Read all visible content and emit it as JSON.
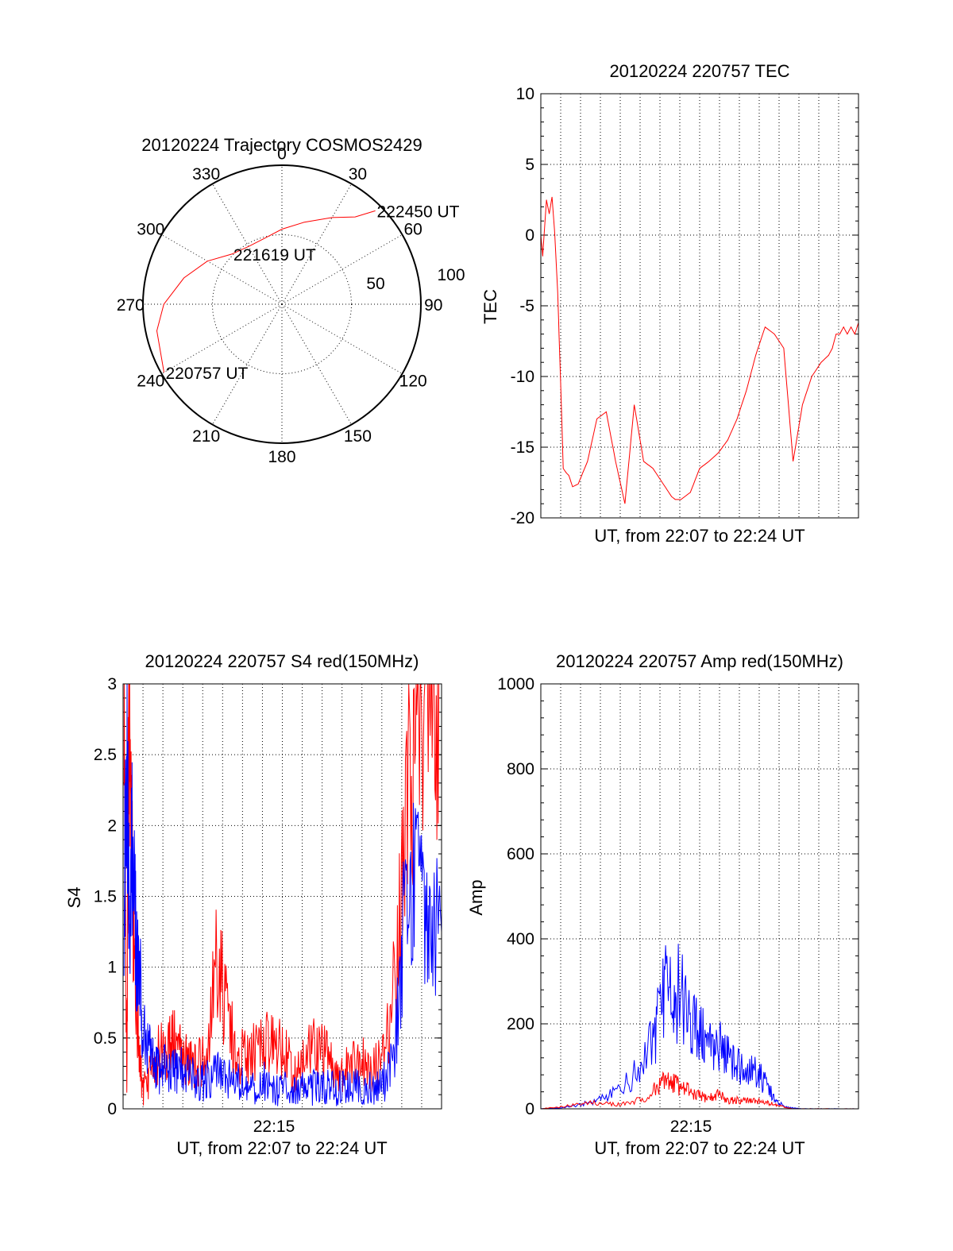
{
  "chart_data": [
    {
      "type": "polar",
      "title": "20120224 Trajectory COSMOS2429",
      "angle_labels": [
        "0",
        "30",
        "60",
        "90",
        "120",
        "150",
        "180",
        "210",
        "240",
        "270",
        "300",
        "330"
      ],
      "radial_labels": [
        "50",
        "100"
      ],
      "series": [
        {
          "color": "#ff0000",
          "points": [
            [
              240,
              98
            ],
            [
              258,
              92
            ],
            [
              270,
              85
            ],
            [
              285,
              73
            ],
            [
              300,
              62
            ],
            [
              315,
              51
            ],
            [
              330,
              48
            ],
            [
              345,
              49
            ],
            [
              0,
              54
            ],
            [
              15,
              61
            ],
            [
              30,
              72
            ],
            [
              40,
              82
            ],
            [
              45,
              95
            ]
          ]
        }
      ],
      "annotations": [
        {
          "text": "222450 UT",
          "az": 45,
          "r": 95
        },
        {
          "text": "221619 UT",
          "az": 315,
          "r": 51
        },
        {
          "text": "220757 UT",
          "az": 240,
          "r": 98
        }
      ]
    },
    {
      "type": "line",
      "title": "20120224 220757 TEC",
      "xlabel": "UT, from 22:07 to 22:24 UT",
      "ylabel": "TEC",
      "xlim": [
        0,
        17
      ],
      "ylim": [
        -20,
        10
      ],
      "yticks": [
        "10",
        "5",
        "0",
        "-5",
        "-10",
        "-15",
        "-20"
      ],
      "series": [
        {
          "color": "#ff0000",
          "x": [
            0.0,
            0.1,
            0.2,
            0.3,
            0.45,
            0.6,
            0.75,
            0.9,
            1.05,
            1.2,
            1.35,
            1.5,
            1.7,
            2.0,
            2.5,
            3.0,
            3.5,
            4.0,
            4.5,
            5.0,
            5.5,
            6.0,
            6.5,
            7.0,
            7.2,
            7.5,
            8.0,
            8.5,
            9.0,
            9.5,
            10.0,
            10.5,
            11.0,
            11.5,
            12.0,
            12.5,
            13.0,
            13.5,
            14.0,
            14.5,
            15.0,
            15.4,
            15.6,
            15.8,
            16.0,
            16.2,
            16.4,
            16.6,
            16.8,
            17.0
          ],
          "y": [
            0,
            -1.5,
            0.5,
            2.5,
            1.5,
            2.7,
            0,
            -4,
            -10,
            -16.5,
            -16.8,
            -17,
            -17.8,
            -17.6,
            -16,
            -13,
            -12.5,
            -16,
            -19,
            -12,
            -16,
            -16.5,
            -17.5,
            -18.5,
            -18.7,
            -18.7,
            -18.2,
            -16.5,
            -16,
            -15.4,
            -14.5,
            -13,
            -11,
            -8.5,
            -6.5,
            -7,
            -8,
            -16,
            -12,
            -10,
            -9,
            -8.5,
            -8,
            -7,
            -7,
            -6.5,
            -7,
            -6.5,
            -7,
            -6.2
          ]
        }
      ]
    },
    {
      "type": "line",
      "title": "20120224 220757 S4 red(150MHz)",
      "xlabel": "UT, from 22:07 to 22:24 UT",
      "ylabel": "S4",
      "xtick_label": "22:15",
      "xlim": [
        0,
        17
      ],
      "ylim": [
        0,
        3
      ],
      "yticks": [
        "3",
        "2.5",
        "2",
        "1.5",
        "1",
        "0.5",
        "0"
      ],
      "series": [
        {
          "color": "#ff0000",
          "x": [
            0.05,
            0.2,
            0.3,
            0.45,
            0.6,
            0.8,
            1.0,
            1.3,
            1.6,
            2.0,
            2.3,
            2.6,
            3.0,
            3.3,
            3.6,
            4.0,
            4.5,
            5.0,
            5.5,
            6.0,
            6.5,
            7.0,
            7.5,
            8.0,
            8.5,
            9.0,
            9.5,
            10.0,
            10.5,
            11.0,
            11.5,
            12.0,
            12.5,
            13.0,
            13.5,
            14.0,
            14.5,
            15.0,
            15.5,
            16.0,
            16.5,
            17.0
          ],
          "y": [
            3.0,
            0.1,
            3.0,
            2.0,
            1.0,
            0.6,
            0.15,
            0.15,
            0.35,
            0.4,
            0.35,
            0.5,
            0.4,
            0.35,
            0.3,
            0.3,
            0.4,
            1.1,
            0.7,
            0.4,
            0.35,
            0.4,
            0.5,
            0.45,
            0.4,
            0.3,
            0.3,
            0.4,
            0.45,
            0.35,
            0.3,
            0.3,
            0.35,
            0.3,
            0.3,
            0.4,
            1.0,
            1.8,
            2.6,
            3.0,
            3.0,
            3.0
          ]
        },
        {
          "color": "#0000ff",
          "x": [
            0.05,
            0.2,
            0.35,
            0.5,
            0.7,
            0.9,
            1.1,
            1.4,
            1.7,
            2.0,
            2.3,
            2.7,
            3.0,
            3.5,
            4.0,
            4.5,
            5.0,
            5.5,
            6.0,
            6.5,
            7.0,
            7.5,
            8.0,
            8.5,
            9.0,
            9.5,
            10.0,
            10.5,
            11.0,
            11.5,
            12.0,
            12.5,
            13.0,
            13.5,
            14.0,
            14.5,
            15.0,
            15.5,
            16.0,
            16.5,
            17.0
          ],
          "y": [
            1.2,
            2.8,
            1.0,
            2.0,
            1.1,
            0.9,
            0.5,
            0.4,
            0.35,
            0.25,
            0.3,
            0.25,
            0.3,
            0.25,
            0.2,
            0.2,
            0.25,
            0.2,
            0.2,
            0.15,
            0.15,
            0.2,
            0.15,
            0.15,
            0.15,
            0.15,
            0.15,
            0.15,
            0.15,
            0.15,
            0.15,
            0.15,
            0.15,
            0.15,
            0.2,
            0.4,
            1.3,
            1.6,
            1.4,
            1.3,
            1.25
          ]
        }
      ]
    },
    {
      "type": "line",
      "title": "20120224 220757 Amp red(150MHz)",
      "xlabel": "UT, from 22:07 to 22:24 UT",
      "ylabel": "Amp",
      "xtick_label": "22:15",
      "xlim": [
        0,
        17
      ],
      "ylim": [
        0,
        1000
      ],
      "yticks": [
        "1000",
        "800",
        "600",
        "400",
        "200",
        "0"
      ],
      "series": [
        {
          "color": "#0000ff",
          "x": [
            0,
            1.0,
            2.0,
            3.0,
            4.0,
            5.0,
            6.0,
            6.5,
            7.0,
            7.5,
            8.0,
            8.5,
            9.0,
            9.5,
            10.0,
            10.5,
            11.0,
            11.5,
            12.0,
            12.5,
            13.0,
            13.5,
            14.0,
            14.5,
            15.0,
            16.0,
            17.0
          ],
          "y": [
            0,
            2,
            8,
            20,
            40,
            80,
            160,
            250,
            300,
            260,
            200,
            180,
            140,
            150,
            120,
            100,
            90,
            90,
            60,
            25,
            5,
            2,
            0,
            0,
            0,
            0,
            0
          ]
        },
        {
          "color": "#ff0000",
          "x": [
            0,
            1.0,
            2.0,
            3.0,
            4.0,
            5.0,
            6.0,
            6.5,
            7.0,
            7.5,
            8.0,
            8.5,
            9.0,
            9.5,
            10.0,
            10.5,
            11.0,
            11.5,
            12.0,
            12.5,
            13.0,
            13.5,
            14.0,
            15.0,
            16.0,
            17.0
          ],
          "y": [
            0,
            5,
            10,
            15,
            10,
            15,
            40,
            60,
            70,
            50,
            40,
            30,
            25,
            35,
            20,
            20,
            18,
            18,
            15,
            10,
            5,
            0,
            0,
            0,
            0,
            0
          ]
        }
      ]
    }
  ]
}
